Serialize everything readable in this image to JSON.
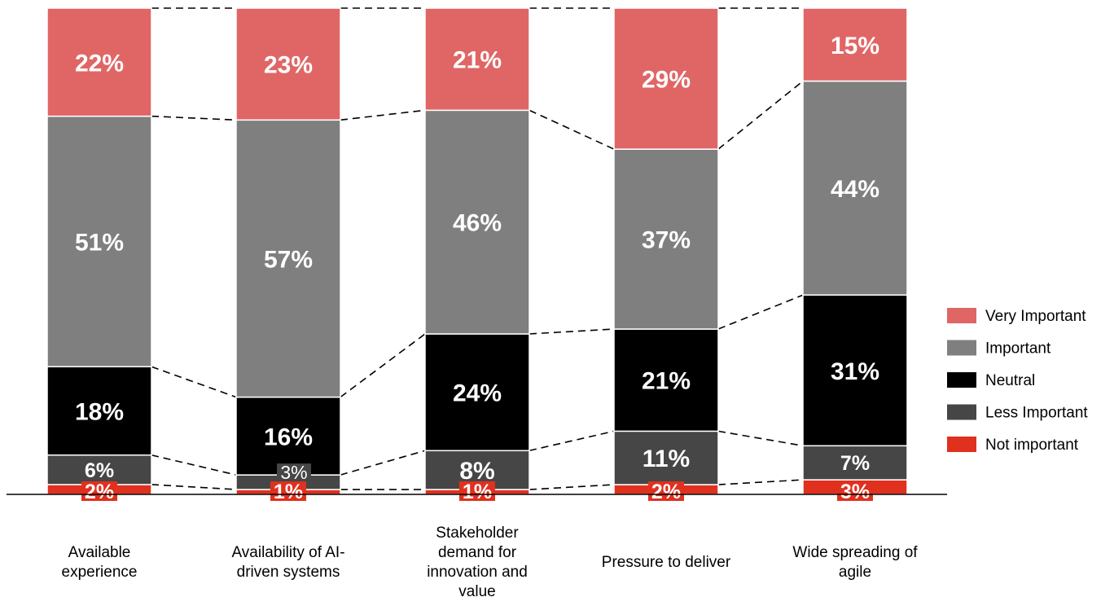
{
  "chart_data": {
    "type": "bar",
    "stacked": true,
    "normalized": true,
    "categories": [
      [
        "Available",
        "experience"
      ],
      [
        "Availability of AI-",
        "driven systems"
      ],
      [
        "Stakeholder",
        "demand for",
        "innovation and",
        "value"
      ],
      [
        "Pressure to deliver"
      ],
      [
        "Wide spreading of",
        "agile"
      ]
    ],
    "series": [
      {
        "name": "Not important",
        "color": "#e0301e",
        "values": [
          2,
          1,
          1,
          2,
          3
        ]
      },
      {
        "name": "Less Important",
        "color": "#464646",
        "values": [
          6,
          3,
          8,
          11,
          7
        ]
      },
      {
        "name": "Neutral",
        "color": "#000000",
        "values": [
          18,
          16,
          24,
          21,
          31
        ]
      },
      {
        "name": "Important",
        "color": "#7f7f7f",
        "values": [
          51,
          57,
          46,
          37,
          44
        ]
      },
      {
        "name": "Very Important",
        "color": "#e06666",
        "values": [
          22,
          23,
          21,
          29,
          15
        ]
      }
    ],
    "legend_order": [
      "Very Important",
      "Important",
      "Neutral",
      "Less Important",
      "Not important"
    ],
    "legend_position": "right",
    "connector_lines": "dashed",
    "grid": false,
    "ylim": [
      0,
      100
    ],
    "title": "",
    "xlabel": "",
    "ylabel": ""
  }
}
